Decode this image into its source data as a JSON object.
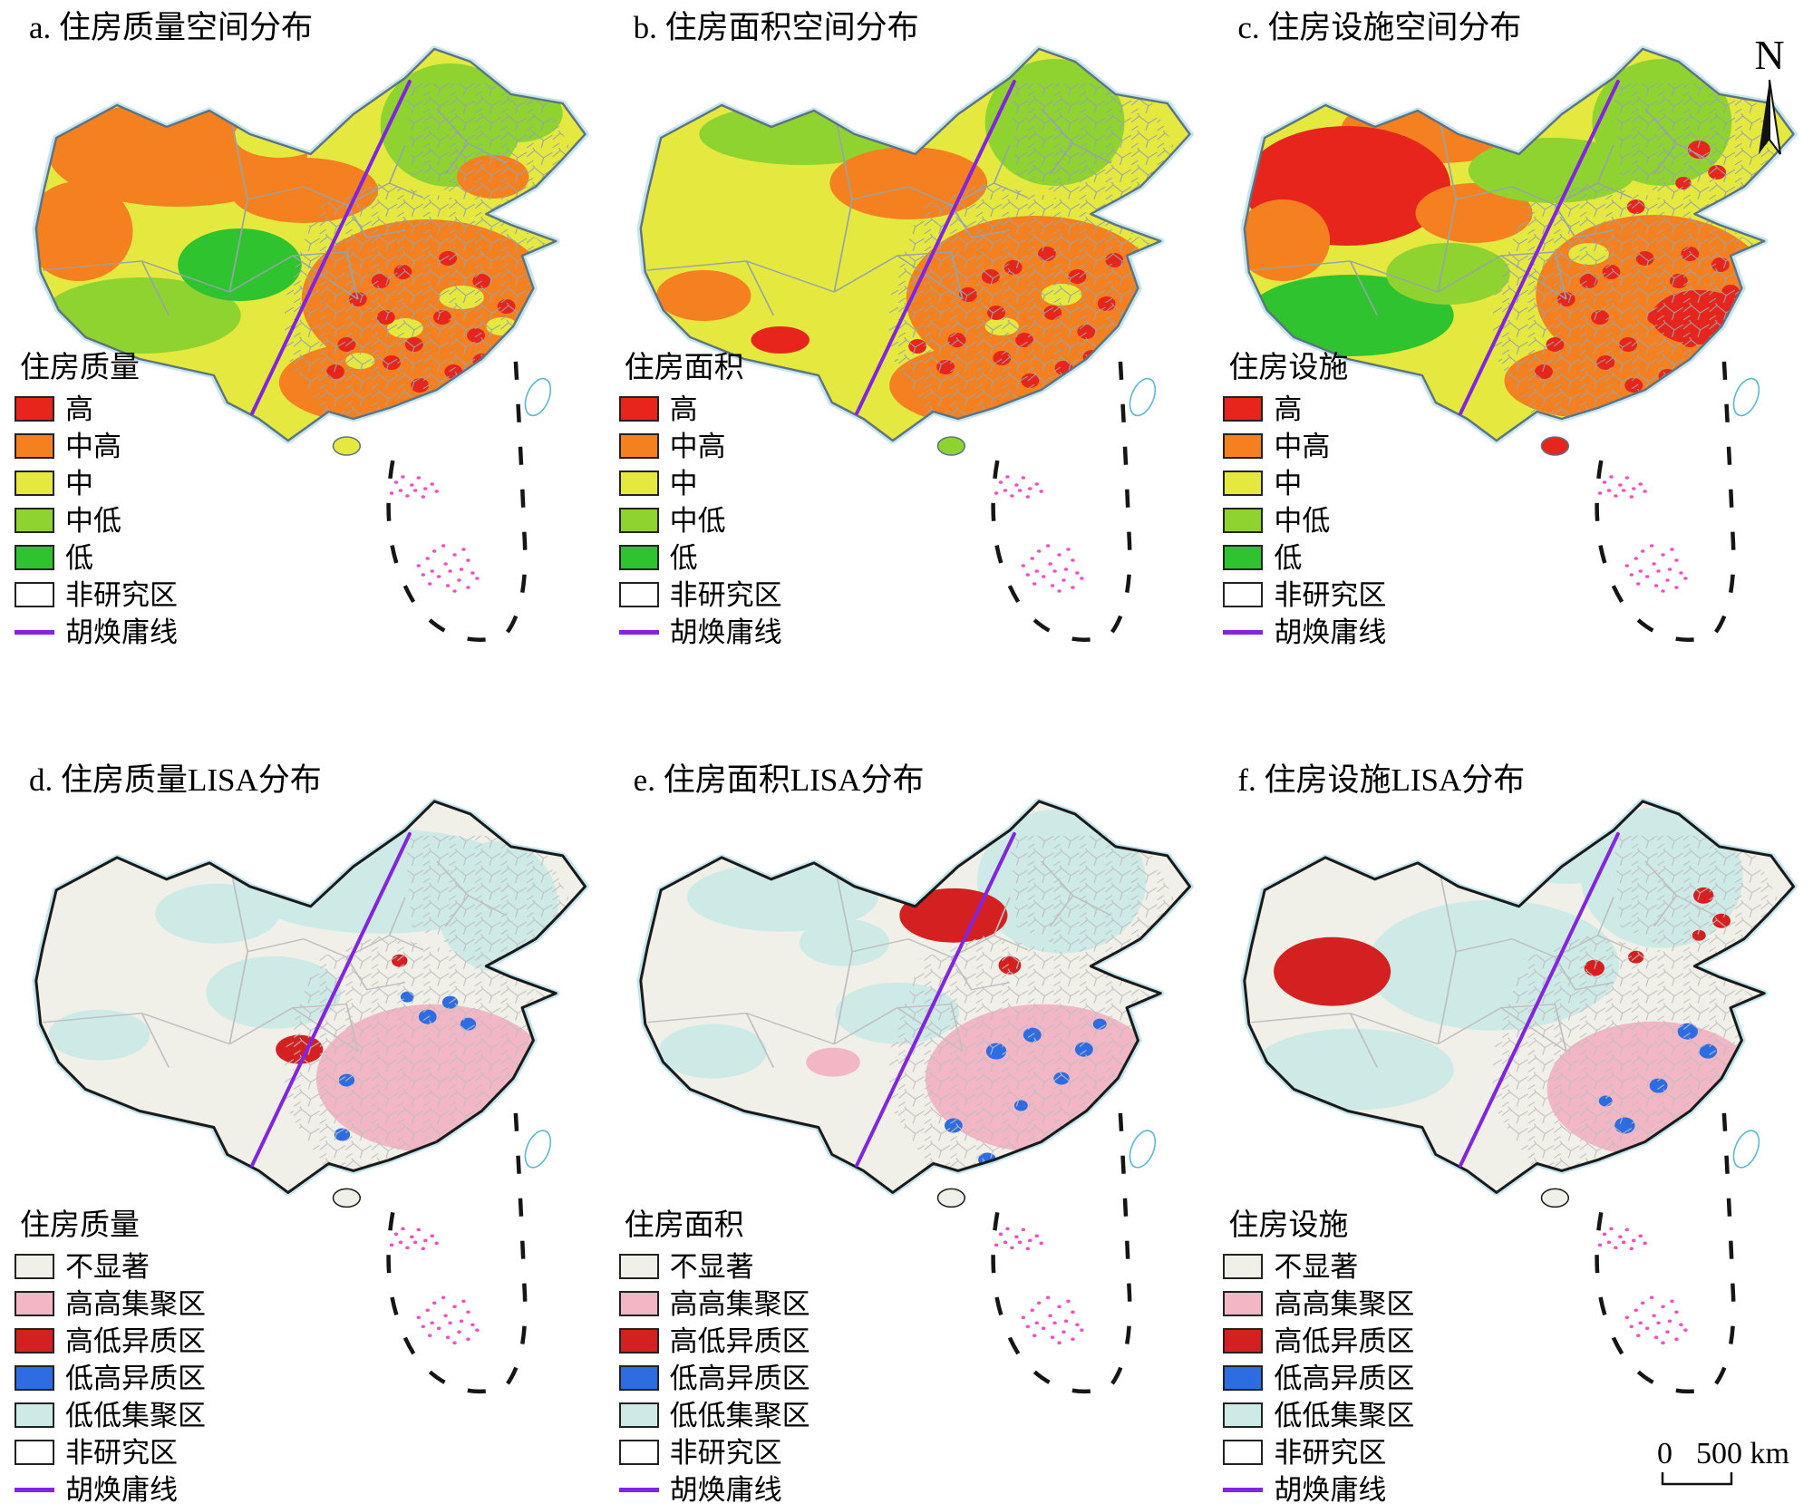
{
  "colors": {
    "high": "#e8251c",
    "mid_high": "#f58020",
    "mid": "#e5e93f",
    "mid_low": "#8fd331",
    "low": "#2fc42f",
    "non_study": "#ffffff",
    "hu_line": "#8224e0",
    "not_significant": "#f0f0e8",
    "high_high": "#f2b6c4",
    "high_low": "#d42020",
    "low_high": "#2e6ce2",
    "low_low": "#cdeae6",
    "island_dots": "#f04fc0"
  },
  "panels": [
    {
      "id": "a",
      "title": "a. 住房质量空间分布",
      "legend_title": "住房质量",
      "type": "dist"
    },
    {
      "id": "b",
      "title": "b. 住房面积空间分布",
      "legend_title": "住房面积",
      "type": "dist"
    },
    {
      "id": "c",
      "title": "c. 住房设施空间分布",
      "legend_title": "住房设施",
      "type": "dist"
    },
    {
      "id": "d",
      "title": "d. 住房质量LISA分布",
      "legend_title": "住房质量",
      "type": "lisa"
    },
    {
      "id": "e",
      "title": "e. 住房面积LISA分布",
      "legend_title": "住房面积",
      "type": "lisa"
    },
    {
      "id": "f",
      "title": "f. 住房设施LISA分布",
      "legend_title": "住房设施",
      "type": "lisa"
    }
  ],
  "legends": {
    "dist": [
      {
        "label": "高",
        "swatch": "fill",
        "color": "high"
      },
      {
        "label": "中高",
        "swatch": "fill",
        "color": "mid_high"
      },
      {
        "label": "中",
        "swatch": "fill",
        "color": "mid"
      },
      {
        "label": "中低",
        "swatch": "fill",
        "color": "mid_low"
      },
      {
        "label": "低",
        "swatch": "fill",
        "color": "low"
      },
      {
        "label": "非研究区",
        "swatch": "fill",
        "color": "non_study"
      },
      {
        "label": "胡焕庸线",
        "swatch": "line",
        "color": "hu_line"
      }
    ],
    "lisa": [
      {
        "label": "不显著",
        "swatch": "fill",
        "color": "not_significant"
      },
      {
        "label": "高高集聚区",
        "swatch": "fill",
        "color": "high_high"
      },
      {
        "label": "高低异质区",
        "swatch": "fill",
        "color": "high_low"
      },
      {
        "label": "低高异质区",
        "swatch": "fill",
        "color": "low_high"
      },
      {
        "label": "低低集聚区",
        "swatch": "fill",
        "color": "low_low"
      },
      {
        "label": "非研究区",
        "swatch": "fill",
        "color": "non_study"
      },
      {
        "label": "胡焕庸线",
        "swatch": "line",
        "color": "hu_line"
      }
    ]
  },
  "compass": {
    "label": "N"
  },
  "scale_bar": {
    "zero": "0",
    "label": "500 km"
  }
}
